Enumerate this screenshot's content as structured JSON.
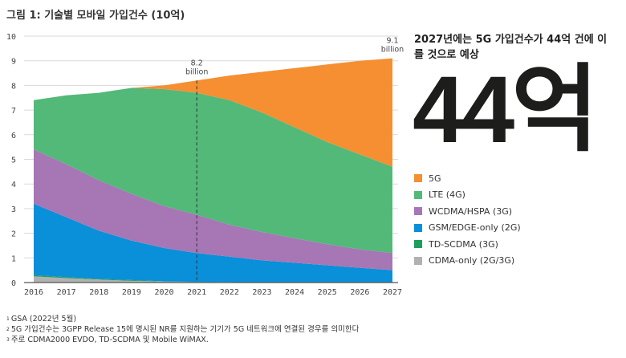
{
  "header": {
    "title": "그림 1: 기술별 모바일 가입건수 (10억)"
  },
  "side": {
    "headline": "2027년에는 5G 가입건수가 44억 건에 이를 것으로 예상",
    "big_number": "44억"
  },
  "footnotes": [
    {
      "mark": "1",
      "text": "GSA (2022년 5월)"
    },
    {
      "mark": "2",
      "text": "5G 가입건수는 3GPP Release 15에 명시된 NR를 지원하는 기기가 5G 네트워크에 연결된 경우를 의미한다"
    },
    {
      "mark": "3",
      "text": "주로 CDMA2000 EVDO, TD-SCDMA 및 Mobile WiMAX."
    }
  ],
  "chart_data": {
    "type": "area",
    "stacked": true,
    "title": "그림 1: 기술별 모바일 가입건수 (10억)",
    "xlabel": "",
    "ylabel": "",
    "ylim": [
      0,
      10
    ],
    "yticks": [
      0,
      1,
      2,
      3,
      4,
      5,
      6,
      7,
      8,
      9,
      10
    ],
    "grid": true,
    "legend_position": "right",
    "x": [
      "2016",
      "2017",
      "2018",
      "2019",
      "2020",
      "2021",
      "2022",
      "2023",
      "2024",
      "2025",
      "2026",
      "2027"
    ],
    "series": [
      {
        "name": "CDMA-only (2G/3G)",
        "color": "#b1b1b1",
        "values": [
          0.25,
          0.18,
          0.12,
          0.07,
          0.04,
          0.02,
          0.01,
          0,
          0,
          0,
          0,
          0
        ]
      },
      {
        "name": "TD-SCDMA (3G)",
        "color": "#1f9e5b",
        "values": [
          0.05,
          0.04,
          0.03,
          0.03,
          0.01,
          0.01,
          0.01,
          0,
          0,
          0,
          0,
          0
        ]
      },
      {
        "name": "GSM/EDGE-only (2G)",
        "color": "#0a8fd9",
        "values": [
          2.9,
          2.43,
          1.95,
          1.6,
          1.35,
          1.17,
          1.03,
          0.9,
          0.8,
          0.7,
          0.6,
          0.5
        ]
      },
      {
        "name": "WCDMA/HSPA (3G)",
        "color": "#a776b5",
        "values": [
          2.2,
          2.15,
          2.05,
          1.9,
          1.7,
          1.55,
          1.3,
          1.15,
          1.0,
          0.85,
          0.75,
          0.7
        ]
      },
      {
        "name": "LTE (4G)",
        "color": "#52b979",
        "values": [
          2.0,
          2.8,
          3.55,
          4.3,
          4.75,
          4.95,
          5.05,
          4.85,
          4.5,
          4.15,
          3.85,
          3.5
        ]
      },
      {
        "name": "5G",
        "color": "#f58f32",
        "values": [
          0,
          0,
          0,
          0,
          0.15,
          0.5,
          1.0,
          1.65,
          2.4,
          3.15,
          3.8,
          4.4
        ]
      }
    ],
    "legend_order": [
      "5G",
      "LTE (4G)",
      "WCDMA/HSPA (3G)",
      "GSM/EDGE-only (2G)",
      "TD-SCDMA (3G)",
      "CDMA-only (2G/3G)"
    ],
    "annotations": [
      {
        "x": "2021",
        "value": "8.2",
        "label": "8.2\nbillion",
        "line": "dashed"
      },
      {
        "x": "2027",
        "value": "9.1",
        "label": "9.1\nbillion"
      }
    ]
  }
}
